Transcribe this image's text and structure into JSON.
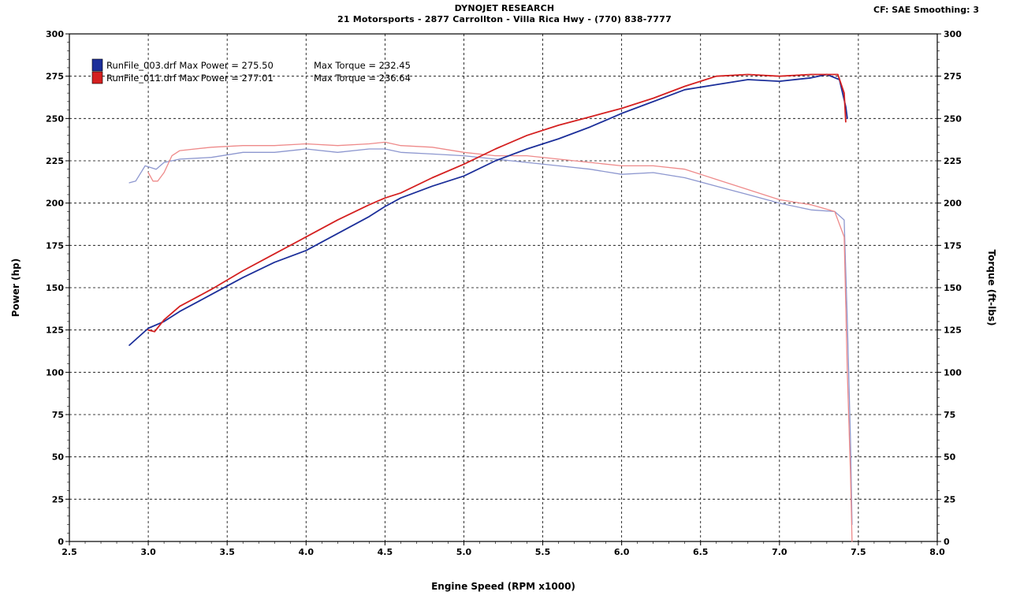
{
  "header": {
    "title": "DYNOJET RESEARCH",
    "subtitle": "21 Motorsports - 2877 Carrollton - Villa Rica Hwy - (770) 838-7777",
    "settings": "CF: SAE  Smoothing: 3"
  },
  "chart_data": {
    "type": "line",
    "xlabel": "Engine Speed (RPM x1000)",
    "ylabel_left": "Power (hp)",
    "ylabel_right": "Torque (ft-lbs)",
    "xlim": [
      2.5,
      8.0
    ],
    "ylim": [
      0,
      300
    ],
    "x_ticks": [
      "2.5",
      "3.0",
      "3.5",
      "4.0",
      "4.5",
      "5.0",
      "5.5",
      "6.0",
      "6.5",
      "7.0",
      "7.5",
      "8.0"
    ],
    "y_ticks": [
      "0",
      "25",
      "50",
      "75",
      "100",
      "125",
      "150",
      "175",
      "200",
      "225",
      "250",
      "275",
      "300"
    ],
    "grid": true,
    "legend_position": "top-left",
    "colors": {
      "run003": "#1c2f9a",
      "run011": "#d42020",
      "run003_torque": "#8d97cf",
      "run011_torque": "#ee8a8a"
    },
    "legend": [
      {
        "run_label": "RunFile_003.drf Max Power = 275.50",
        "torque_label": "Max Torque = 232.45",
        "color": "#1c2f9a"
      },
      {
        "run_label": "RunFile_011.drf Max Power = 277.01",
        "torque_label": "Max Torque = 236.64",
        "color": "#d42020"
      }
    ],
    "series": [
      {
        "name": "RunFile_003.drf",
        "measure": "power",
        "color": "#1c2f9a",
        "x": [
          2.88,
          3.0,
          3.1,
          3.2,
          3.4,
          3.6,
          3.8,
          4.0,
          4.2,
          4.4,
          4.5,
          4.6,
          4.8,
          5.0,
          5.2,
          5.4,
          5.6,
          5.8,
          6.0,
          6.2,
          6.4,
          6.6,
          6.8,
          7.0,
          7.2,
          7.3,
          7.38,
          7.42,
          7.43
        ],
        "values": [
          116,
          126,
          130,
          136,
          146,
          156,
          165,
          172,
          182,
          192,
          198,
          203,
          210,
          216,
          225,
          232,
          238,
          245,
          253,
          260,
          267,
          270,
          273,
          272,
          274,
          276,
          273,
          257,
          250
        ]
      },
      {
        "name": "RunFile_011.drf",
        "measure": "power",
        "color": "#d42020",
        "x": [
          3.0,
          3.04,
          3.1,
          3.2,
          3.4,
          3.6,
          3.8,
          4.0,
          4.2,
          4.4,
          4.5,
          4.6,
          4.8,
          5.0,
          5.2,
          5.4,
          5.6,
          5.8,
          6.0,
          6.2,
          6.4,
          6.6,
          6.8,
          7.0,
          7.2,
          7.3,
          7.37,
          7.41,
          7.42
        ],
        "values": [
          125,
          124,
          131,
          139,
          149,
          160,
          170,
          180,
          190,
          199,
          203,
          206,
          215,
          223,
          232,
          240,
          246,
          251,
          256,
          262,
          269,
          275,
          276,
          275,
          276,
          276,
          276,
          265,
          248
        ]
      },
      {
        "name": "RunFile_003.drf",
        "measure": "torque",
        "color": "#8d97cf",
        "x": [
          2.88,
          2.92,
          2.98,
          3.05,
          3.1,
          3.2,
          3.4,
          3.6,
          3.8,
          4.0,
          4.2,
          4.4,
          4.5,
          4.6,
          4.8,
          5.0,
          5.2,
          5.4,
          5.6,
          5.8,
          6.0,
          6.2,
          6.4,
          6.6,
          6.8,
          7.0,
          7.2,
          7.35,
          7.41,
          7.43,
          7.45,
          7.46
        ],
        "values": [
          212,
          213,
          222,
          220,
          224,
          226,
          227,
          230,
          230,
          232,
          230,
          232,
          232,
          230,
          229,
          228,
          226,
          224,
          222,
          220,
          217,
          218,
          215,
          210,
          205,
          200,
          196,
          195,
          190,
          130,
          60,
          10
        ]
      },
      {
        "name": "RunFile_011.drf",
        "measure": "torque",
        "color": "#ee8a8a",
        "x": [
          3.0,
          3.03,
          3.06,
          3.1,
          3.15,
          3.2,
          3.4,
          3.6,
          3.8,
          4.0,
          4.2,
          4.4,
          4.5,
          4.6,
          4.8,
          5.0,
          5.2,
          5.4,
          5.6,
          5.8,
          6.0,
          6.2,
          6.4,
          6.6,
          6.8,
          7.0,
          7.2,
          7.35,
          7.41,
          7.43,
          7.45,
          7.46
        ],
        "values": [
          218,
          213,
          213,
          218,
          228,
          231,
          233,
          234,
          234,
          235,
          234,
          235,
          236,
          234,
          233,
          230,
          228,
          228,
          226,
          224,
          222,
          222,
          220,
          214,
          208,
          202,
          199,
          195,
          180,
          100,
          40,
          0
        ]
      }
    ]
  }
}
